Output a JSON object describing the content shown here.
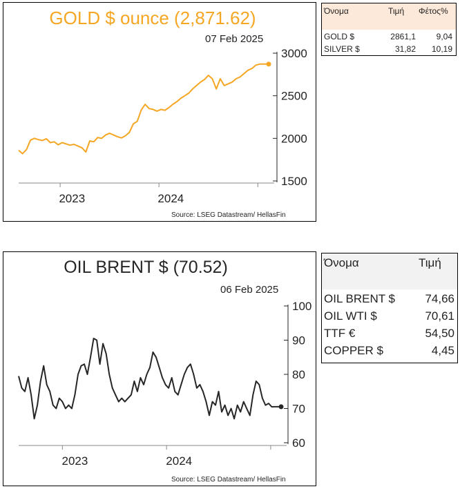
{
  "gold_chart": {
    "title": "GOLD $ ounce (2,871.62)",
    "date": "07 Feb 2025",
    "source": "Source: LSEG Datastream/ HellasFin",
    "accent_color": "#f5a623"
  },
  "gold_table": {
    "headers": [
      "Όνομα",
      "Τιμή",
      "Φέτος%"
    ],
    "header_bg": "#fde9d9",
    "rows": [
      [
        "GOLD $",
        "2861,1",
        "9,04"
      ],
      [
        "SILVER $",
        "31,82",
        "10,19"
      ]
    ]
  },
  "oil_chart": {
    "title": "OIL BRENT $ (70.52)",
    "date": "06 Feb 2025",
    "source": "Source: LSEG Datastream/ HellasFin",
    "line_color": "#262626"
  },
  "oil_table": {
    "headers": [
      "Όνομα",
      "Τιμή"
    ],
    "header_bg": "#f2f2f2",
    "rows": [
      [
        "OIL BRENT $",
        "74,66"
      ],
      [
        "OIL WTI $",
        "70,61"
      ],
      [
        "TTF €",
        "54,50"
      ],
      [
        "COPPER $",
        "4,45"
      ]
    ]
  },
  "chart_data": [
    {
      "type": "line",
      "title": "GOLD $ ounce (2,871.62)",
      "xlabel": "",
      "ylabel": "",
      "x_ticks": [
        "2023",
        "2024"
      ],
      "y_ticks": [
        1500,
        2000,
        2500,
        3000
      ],
      "ylim": [
        1500,
        3000
      ],
      "xlim": [
        2022.58,
        2025.11
      ],
      "grid": false,
      "x": [
        2022.58,
        2022.62,
        2022.66,
        2022.7,
        2022.74,
        2022.78,
        2022.82,
        2022.86,
        2022.9,
        2022.94,
        2022.98,
        2023.02,
        2023.06,
        2023.1,
        2023.14,
        2023.18,
        2023.22,
        2023.26,
        2023.3,
        2023.34,
        2023.38,
        2023.42,
        2023.46,
        2023.5,
        2023.54,
        2023.58,
        2023.62,
        2023.66,
        2023.7,
        2023.74,
        2023.78,
        2023.82,
        2023.86,
        2023.9,
        2023.94,
        2023.98,
        2024.02,
        2024.06,
        2024.1,
        2024.14,
        2024.18,
        2024.22,
        2024.26,
        2024.3,
        2024.34,
        2024.38,
        2024.42,
        2024.46,
        2024.5,
        2024.54,
        2024.58,
        2024.62,
        2024.66,
        2024.7,
        2024.74,
        2024.78,
        2024.82,
        2024.86,
        2024.9,
        2024.94,
        2024.98,
        2025.02,
        2025.06,
        2025.11
      ],
      "series": [
        {
          "values": [
            1860,
            1820,
            1870,
            1980,
            2000,
            1985,
            1975,
            1995,
            1950,
            1960,
            1925,
            1950,
            1935,
            1920,
            1930,
            1910,
            1890,
            1840,
            1970,
            1960,
            2010,
            2000,
            2040,
            2060,
            2040,
            2020,
            2005,
            2030,
            2070,
            2170,
            2200,
            2330,
            2400,
            2350,
            2340,
            2320,
            2340,
            2330,
            2360,
            2400,
            2430,
            2470,
            2500,
            2530,
            2580,
            2620,
            2660,
            2690,
            2740,
            2700,
            2580,
            2700,
            2620,
            2640,
            2660,
            2700,
            2720,
            2760,
            2800,
            2820,
            2860,
            2871.62,
            2871.62,
            2871.62
          ]
        }
      ]
    },
    {
      "type": "line",
      "title": "OIL BRENT $ (70.52)",
      "xlabel": "",
      "ylabel": "",
      "x_ticks": [
        "2023",
        "2024"
      ],
      "y_ticks": [
        60,
        70,
        80,
        90,
        100
      ],
      "ylim": [
        60,
        100
      ],
      "xlim": [
        2022.58,
        2025.1
      ],
      "grid": false,
      "x": [
        2022.58,
        2022.61,
        2022.64,
        2022.67,
        2022.7,
        2022.73,
        2022.76,
        2022.79,
        2022.82,
        2022.85,
        2022.88,
        2022.91,
        2022.94,
        2022.97,
        2023.0,
        2023.03,
        2023.06,
        2023.09,
        2023.12,
        2023.15,
        2023.18,
        2023.21,
        2023.24,
        2023.27,
        2023.3,
        2023.33,
        2023.36,
        2023.39,
        2023.42,
        2023.45,
        2023.48,
        2023.51,
        2023.54,
        2023.57,
        2023.6,
        2023.63,
        2023.66,
        2023.69,
        2023.72,
        2023.75,
        2023.78,
        2023.81,
        2023.84,
        2023.87,
        2023.9,
        2023.93,
        2023.96,
        2023.99,
        2024.02,
        2024.05,
        2024.08,
        2024.11,
        2024.14,
        2024.17,
        2024.2,
        2024.23,
        2024.26,
        2024.29,
        2024.32,
        2024.35,
        2024.38,
        2024.41,
        2024.44,
        2024.47,
        2024.5,
        2024.53,
        2024.56,
        2024.59,
        2024.62,
        2024.65,
        2024.68,
        2024.71,
        2024.74,
        2024.77,
        2024.8,
        2024.83,
        2024.86,
        2024.89,
        2024.92,
        2024.95,
        2024.98,
        2025.01,
        2025.04,
        2025.07,
        2025.1
      ],
      "series": [
        {
          "values": [
            79.5,
            76,
            75,
            79,
            74,
            67,
            71,
            78,
            82.5,
            77,
            75,
            71,
            70,
            73,
            72,
            70,
            71,
            70,
            74,
            80,
            82.5,
            83,
            80,
            85,
            90.5,
            90,
            83,
            89,
            86,
            80,
            76,
            74,
            72,
            73,
            72,
            73,
            74,
            78,
            75,
            79,
            77,
            80,
            82,
            86.5,
            85,
            82,
            79,
            77,
            76,
            79,
            75,
            74,
            77,
            80,
            82,
            83,
            80,
            76,
            77,
            75,
            72,
            68,
            72,
            71,
            75,
            69,
            71,
            68,
            70,
            67,
            71,
            69,
            72,
            70,
            68,
            74,
            78,
            77,
            73,
            71,
            71.5,
            70.5,
            70.52,
            70.52,
            70.52
          ]
        }
      ]
    }
  ]
}
